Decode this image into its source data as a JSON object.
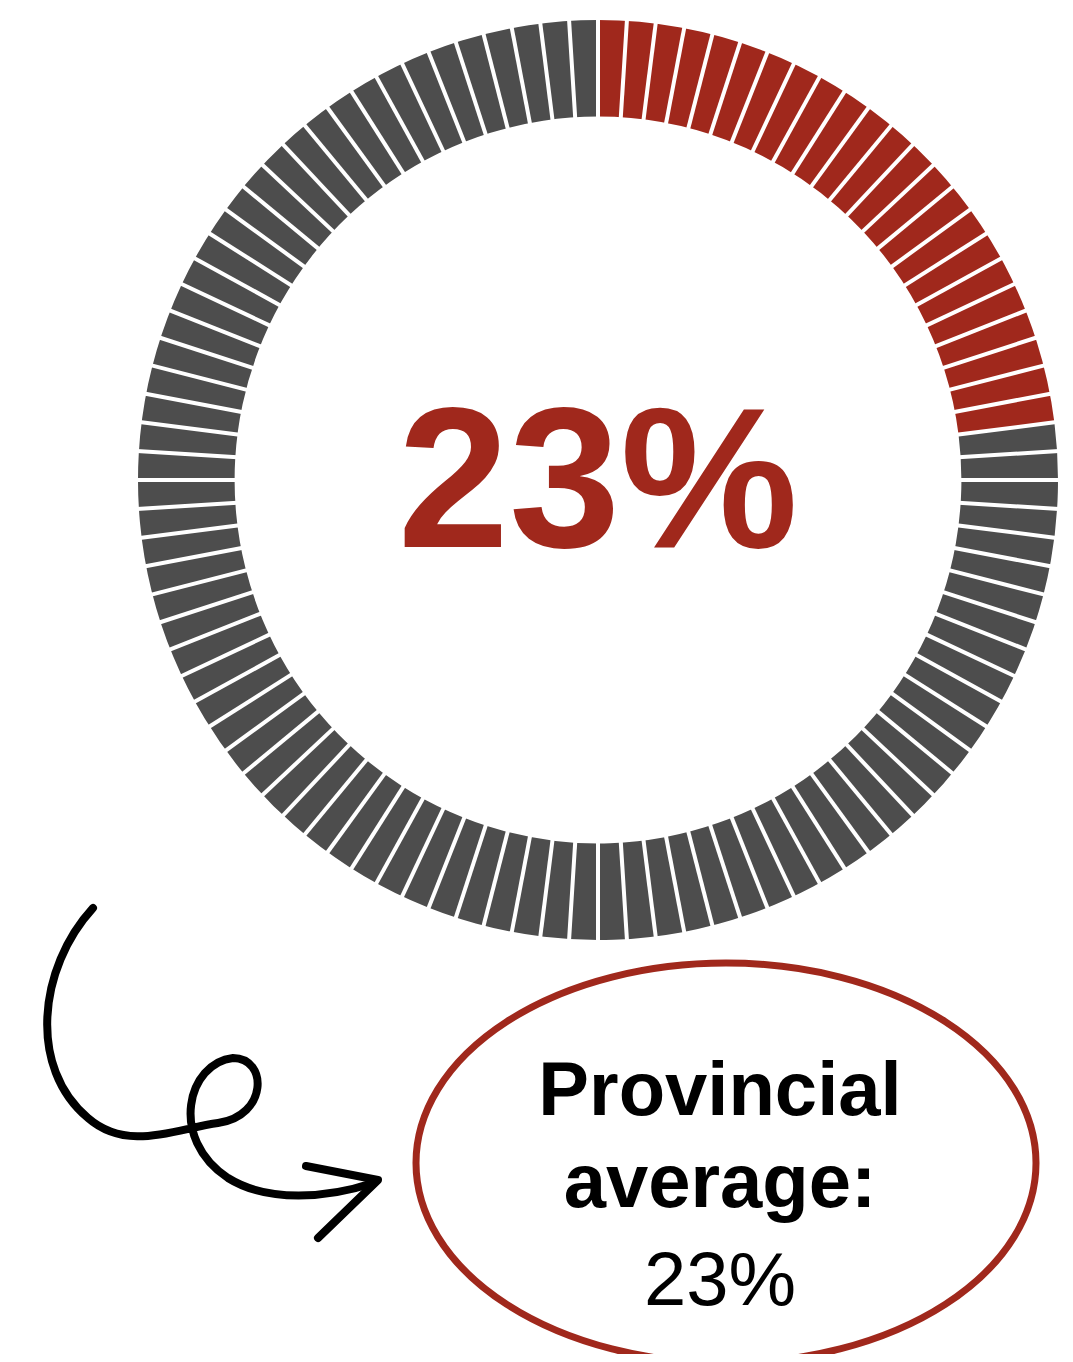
{
  "chart_data": {
    "type": "donut",
    "categories": [
      null,
      null
    ],
    "values": [
      23,
      77
    ],
    "colors": [
      "#a0281c",
      "#4d4d4d"
    ],
    "legend": false,
    "annotations": [
      "23%",
      "Provincial average:",
      "23%"
    ]
  }
}
